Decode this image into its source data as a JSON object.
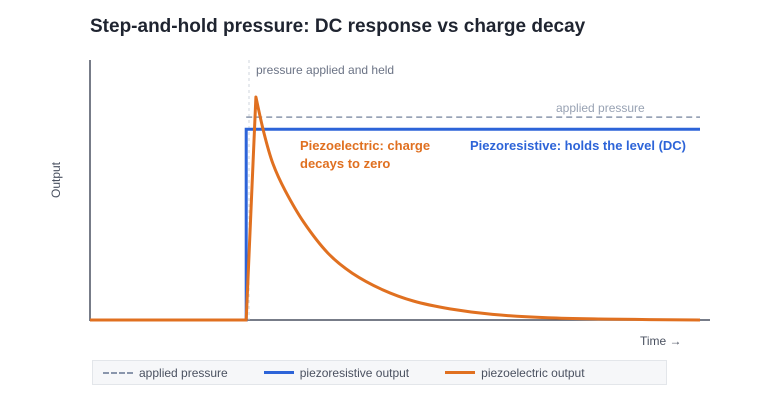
{
  "title": "Step-and-hold pressure: DC response vs charge decay",
  "colors": {
    "applied": "#8a96ac",
    "piezoresistive": "#2d64d8",
    "piezoelectric": "#e07020",
    "axis": "#4a5160"
  },
  "chart_data": {
    "type": "line",
    "title": "Step-and-hold pressure: DC response vs charge decay",
    "xlabel": "Time →",
    "ylabel": "Output",
    "xlim": [
      0,
      10
    ],
    "ylim": [
      0,
      1
    ],
    "grid": false,
    "legend_position": "bottom",
    "series": [
      {
        "name": "applied pressure",
        "style": "dashed",
        "x": [
          2.56,
          10
        ],
        "y": [
          0.91,
          0.91
        ]
      },
      {
        "name": "piezoresistive output",
        "style": "solid",
        "x": [
          0,
          2.56,
          2.56,
          10
        ],
        "y": [
          0,
          0,
          0.855,
          0.855
        ]
      },
      {
        "name": "piezoelectric output",
        "style": "solid",
        "x": [
          0,
          2.56,
          2.72,
          2.85,
          3.0,
          3.2,
          3.5,
          3.9,
          4.3,
          4.8,
          5.3,
          5.9,
          6.6,
          7.5,
          8.5,
          10
        ],
        "y": [
          0,
          0,
          1.0,
          0.84,
          0.7,
          0.58,
          0.44,
          0.3,
          0.21,
          0.135,
          0.085,
          0.05,
          0.025,
          0.01,
          0.004,
          0
        ]
      }
    ],
    "annotations": {
      "step_marker": "pressure applied and held",
      "applied_label": "applied pressure",
      "piezoelectric_label_line1": "Piezoelectric: charge",
      "piezoelectric_label_line2": "decays to zero",
      "piezoresistive_label": "Piezoresistive: holds the level (DC)"
    }
  },
  "legend": [
    {
      "label": "applied pressure"
    },
    {
      "label": "piezoresistive output"
    },
    {
      "label": "piezoelectric output"
    }
  ]
}
